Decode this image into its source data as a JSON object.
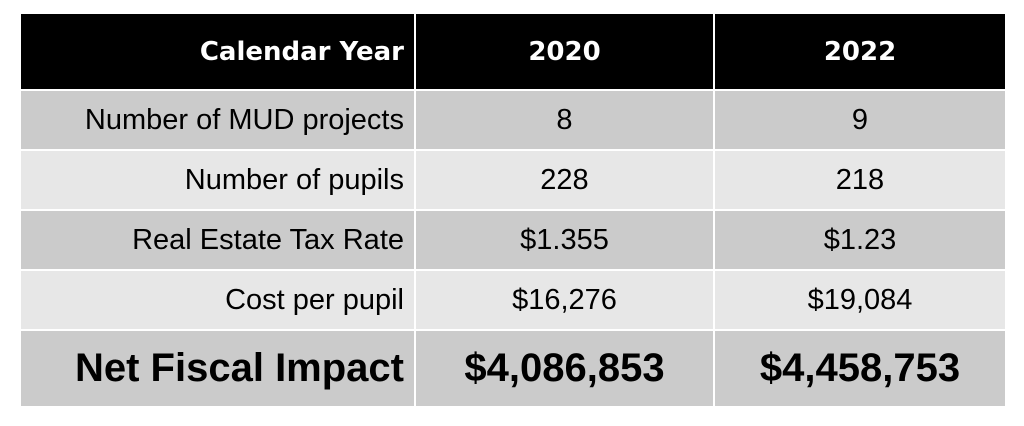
{
  "table": {
    "header": {
      "label": "Calendar Year",
      "years": [
        "2020",
        "2022"
      ]
    },
    "rows": [
      {
        "label": "Number of MUD projects",
        "values": [
          "8",
          "9"
        ]
      },
      {
        "label": "Number of pupils",
        "values": [
          "228",
          "218"
        ]
      },
      {
        "label": "Real Estate Tax Rate",
        "values": [
          "$1.355",
          "$1.23"
        ]
      },
      {
        "label": "Cost per pupil",
        "values": [
          "$16,276",
          "$19,084"
        ]
      }
    ],
    "total": {
      "label": "Net Fiscal Impact",
      "values": [
        "$4,086,853",
        "$4,458,753"
      ]
    },
    "colors": {
      "header_bg": "#000000",
      "row_dark": "#cbcbcb",
      "row_light": "#e7e7e7"
    }
  }
}
